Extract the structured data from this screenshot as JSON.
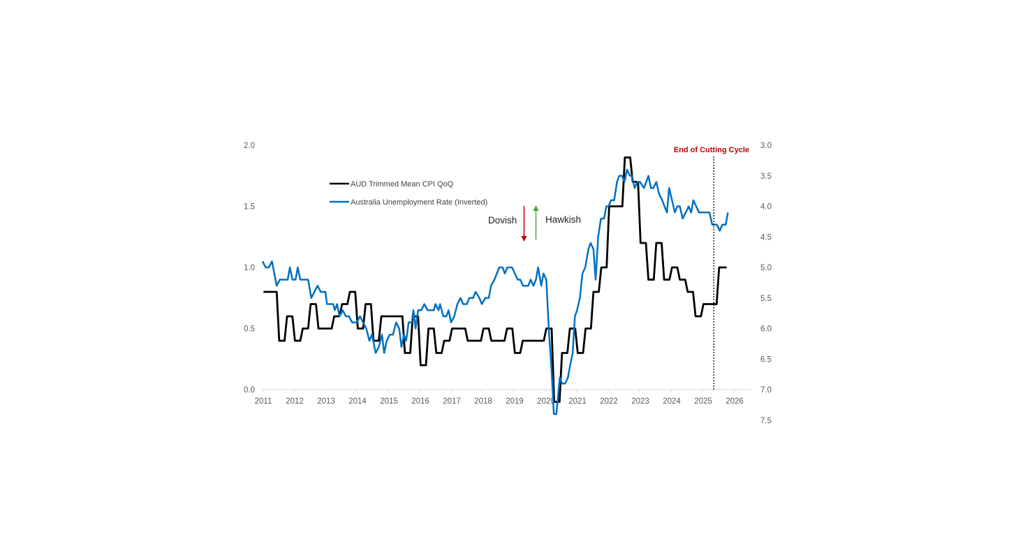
{
  "chart_data": {
    "type": "line",
    "title": "",
    "xlabel": "",
    "ylabel_left": "",
    "ylabel_right": "",
    "xlim": [
      2011,
      2026
    ],
    "x_ticks": [
      "2011",
      "2012",
      "2013",
      "2014",
      "2015",
      "2016",
      "2017",
      "2018",
      "2019",
      "2020",
      "2021",
      "2022",
      "2023",
      "2024",
      "2025",
      "2026"
    ],
    "ylim_left": [
      0,
      2
    ],
    "y_ticks_left": [
      "0.0",
      "0.5",
      "1.0",
      "1.5",
      "2.0"
    ],
    "ylim_right": [
      3,
      7.5
    ],
    "right_axis_inverted": true,
    "y_ticks_right": [
      "3.0",
      "3.5",
      "4.0",
      "4.5",
      "5.0",
      "5.5",
      "6.0",
      "6.5",
      "7.0",
      "7.5"
    ],
    "grid": false,
    "legend_position": "top-left",
    "series": [
      {
        "name": "AUD Trimmed Mean CPI QoQ",
        "axis": "left",
        "color": "#000000",
        "frequency": "quarterly",
        "quarters": [
          "2011-Q1",
          "2011-Q2",
          "2011-Q3",
          "2011-Q4",
          "2012-Q1",
          "2012-Q2",
          "2012-Q3",
          "2012-Q4",
          "2013-Q1",
          "2013-Q2",
          "2013-Q3",
          "2013-Q4",
          "2014-Q1",
          "2014-Q2",
          "2014-Q3",
          "2014-Q4",
          "2015-Q1",
          "2015-Q2",
          "2015-Q3",
          "2015-Q4",
          "2016-Q1",
          "2016-Q2",
          "2016-Q3",
          "2016-Q4",
          "2017-Q1",
          "2017-Q2",
          "2017-Q3",
          "2017-Q4",
          "2018-Q1",
          "2018-Q2",
          "2018-Q3",
          "2018-Q4",
          "2019-Q1",
          "2019-Q2",
          "2019-Q3",
          "2019-Q4",
          "2020-Q1",
          "2020-Q2",
          "2020-Q3",
          "2020-Q4",
          "2021-Q1",
          "2021-Q2",
          "2021-Q3",
          "2021-Q4",
          "2022-Q1",
          "2022-Q2",
          "2022-Q3",
          "2022-Q4",
          "2023-Q1",
          "2023-Q2",
          "2023-Q3",
          "2023-Q4",
          "2024-Q1",
          "2024-Q2",
          "2024-Q3",
          "2024-Q4",
          "2025-Q1",
          "2025-Q2",
          "2025-Q3"
        ],
        "values": [
          0.8,
          0.8,
          0.4,
          0.6,
          0.4,
          0.5,
          0.7,
          0.5,
          0.5,
          0.6,
          0.7,
          0.8,
          0.5,
          0.7,
          0.4,
          0.6,
          0.6,
          0.6,
          0.3,
          0.6,
          0.2,
          0.5,
          0.3,
          0.4,
          0.5,
          0.5,
          0.4,
          0.4,
          0.5,
          0.4,
          0.4,
          0.5,
          0.3,
          0.4,
          0.4,
          0.4,
          0.5,
          -0.1,
          0.3,
          0.5,
          0.3,
          0.5,
          0.8,
          1.0,
          1.5,
          1.5,
          1.9,
          1.7,
          1.2,
          0.9,
          1.2,
          0.9,
          1.0,
          0.9,
          0.8,
          0.6,
          0.7,
          0.7,
          1.0
        ]
      },
      {
        "name": "Australia Unemployment Rate (Inverted)",
        "axis": "right",
        "color": "#0070c0",
        "points": [
          [
            2011.0,
            4.9
          ],
          [
            2011.1,
            5.0
          ],
          [
            2011.2,
            5.0
          ],
          [
            2011.3,
            4.9
          ],
          [
            2011.45,
            5.3
          ],
          [
            2011.55,
            5.2
          ],
          [
            2011.8,
            5.2
          ],
          [
            2011.87,
            5.0
          ],
          [
            2011.95,
            5.2
          ],
          [
            2012.05,
            5.2
          ],
          [
            2012.12,
            5.0
          ],
          [
            2012.2,
            5.2
          ],
          [
            2012.45,
            5.2
          ],
          [
            2012.55,
            5.5
          ],
          [
            2012.75,
            5.3
          ],
          [
            2012.85,
            5.4
          ],
          [
            2013.0,
            5.4
          ],
          [
            2013.05,
            5.6
          ],
          [
            2013.25,
            5.6
          ],
          [
            2013.3,
            5.7
          ],
          [
            2013.37,
            5.6
          ],
          [
            2013.45,
            5.8
          ],
          [
            2013.55,
            5.7
          ],
          [
            2013.65,
            5.8
          ],
          [
            2013.75,
            5.8
          ],
          [
            2013.85,
            5.9
          ],
          [
            2014.0,
            5.9
          ],
          [
            2014.1,
            5.8
          ],
          [
            2014.2,
            5.9
          ],
          [
            2014.3,
            6.0
          ],
          [
            2014.4,
            6.2
          ],
          [
            2014.48,
            6.1
          ],
          [
            2014.6,
            6.4
          ],
          [
            2014.7,
            6.3
          ],
          [
            2014.8,
            6.1
          ],
          [
            2014.87,
            6.4
          ],
          [
            2014.95,
            6.2
          ],
          [
            2015.05,
            6.1
          ],
          [
            2015.15,
            6.1
          ],
          [
            2015.25,
            5.9
          ],
          [
            2015.35,
            6.0
          ],
          [
            2015.42,
            6.3
          ],
          [
            2015.5,
            6.1
          ],
          [
            2015.57,
            6.2
          ],
          [
            2015.65,
            5.9
          ],
          [
            2015.75,
            5.9
          ],
          [
            2015.8,
            5.7
          ],
          [
            2015.87,
            6.0
          ],
          [
            2015.95,
            5.7
          ],
          [
            2016.05,
            5.7
          ],
          [
            2016.15,
            5.6
          ],
          [
            2016.25,
            5.7
          ],
          [
            2016.45,
            5.7
          ],
          [
            2016.5,
            5.6
          ],
          [
            2016.6,
            5.7
          ],
          [
            2016.65,
            5.6
          ],
          [
            2016.75,
            5.8
          ],
          [
            2016.85,
            5.8
          ],
          [
            2016.92,
            5.7
          ],
          [
            2017.0,
            5.9
          ],
          [
            2017.1,
            5.8
          ],
          [
            2017.2,
            5.6
          ],
          [
            2017.3,
            5.5
          ],
          [
            2017.38,
            5.6
          ],
          [
            2017.5,
            5.6
          ],
          [
            2017.58,
            5.5
          ],
          [
            2017.7,
            5.5
          ],
          [
            2017.78,
            5.4
          ],
          [
            2017.9,
            5.5
          ],
          [
            2017.98,
            5.6
          ],
          [
            2018.09,
            5.5
          ],
          [
            2018.2,
            5.5
          ],
          [
            2018.27,
            5.3
          ],
          [
            2018.38,
            5.2
          ],
          [
            2018.53,
            5.0
          ],
          [
            2018.64,
            5.0
          ],
          [
            2018.71,
            5.1
          ],
          [
            2018.79,
            5.0
          ],
          [
            2018.94,
            5.0
          ],
          [
            2019.12,
            5.2
          ],
          [
            2019.2,
            5.2
          ],
          [
            2019.29,
            5.3
          ],
          [
            2019.46,
            5.3
          ],
          [
            2019.53,
            5.2
          ],
          [
            2019.62,
            5.3
          ],
          [
            2019.7,
            5.2
          ],
          [
            2019.77,
            5.0
          ],
          [
            2019.87,
            5.3
          ],
          [
            2019.94,
            5.1
          ],
          [
            2020.03,
            5.2
          ],
          [
            2020.12,
            6.1
          ],
          [
            2020.2,
            6.7
          ],
          [
            2020.27,
            7.4
          ],
          [
            2020.35,
            7.4
          ],
          [
            2020.46,
            6.8
          ],
          [
            2020.53,
            6.9
          ],
          [
            2020.63,
            6.9
          ],
          [
            2020.72,
            6.8
          ],
          [
            2020.79,
            6.6
          ],
          [
            2020.87,
            6.4
          ],
          [
            2020.94,
            5.8
          ],
          [
            2021.01,
            5.7
          ],
          [
            2021.1,
            5.5
          ],
          [
            2021.18,
            5.1
          ],
          [
            2021.27,
            5.0
          ],
          [
            2021.37,
            4.7
          ],
          [
            2021.44,
            4.6
          ],
          [
            2021.53,
            4.7
          ],
          [
            2021.6,
            5.2
          ],
          [
            2021.68,
            4.5
          ],
          [
            2021.77,
            4.2
          ],
          [
            2021.87,
            4.2
          ],
          [
            2021.94,
            4.0
          ],
          [
            2022.01,
            4.0
          ],
          [
            2022.09,
            3.9
          ],
          [
            2022.19,
            3.9
          ],
          [
            2022.28,
            3.6
          ],
          [
            2022.35,
            3.5
          ],
          [
            2022.44,
            3.5
          ],
          [
            2022.52,
            3.6
          ],
          [
            2022.6,
            3.4
          ],
          [
            2022.69,
            3.5
          ],
          [
            2022.76,
            3.5
          ],
          [
            2022.84,
            3.7
          ],
          [
            2022.93,
            3.6
          ],
          [
            2023.01,
            3.6
          ],
          [
            2023.14,
            3.7
          ],
          [
            2023.28,
            3.5
          ],
          [
            2023.36,
            3.7
          ],
          [
            2023.44,
            3.7
          ],
          [
            2023.53,
            3.6
          ],
          [
            2023.62,
            3.8
          ],
          [
            2023.72,
            3.9
          ],
          [
            2023.79,
            4.0
          ],
          [
            2023.87,
            4.1
          ],
          [
            2023.94,
            3.7
          ],
          [
            2024.03,
            3.9
          ],
          [
            2024.12,
            4.1
          ],
          [
            2024.2,
            4.0
          ],
          [
            2024.28,
            4.0
          ],
          [
            2024.37,
            4.2
          ],
          [
            2024.47,
            4.1
          ],
          [
            2024.56,
            4.0
          ],
          [
            2024.64,
            4.1
          ],
          [
            2024.71,
            3.9
          ],
          [
            2024.8,
            4.0
          ],
          [
            2024.89,
            4.1
          ],
          [
            2025.22,
            4.1
          ],
          [
            2025.31,
            4.3
          ],
          [
            2025.46,
            4.3
          ],
          [
            2025.55,
            4.4
          ],
          [
            2025.63,
            4.3
          ],
          [
            2025.74,
            4.3
          ],
          [
            2025.81,
            4.1
          ]
        ]
      }
    ],
    "annotations": {
      "cutting_cycle_label": "End of Cutting Cycle",
      "cutting_cycle_x": 2025.36,
      "cutting_cycle_color": "#c00000",
      "dovish_label": "Dovish",
      "dovish_arrow": "down",
      "dovish_color": "#c00000",
      "hawkish_label": "Hawkish",
      "hawkish_arrow": "up",
      "hawkish_color": "#4ea72e"
    }
  }
}
